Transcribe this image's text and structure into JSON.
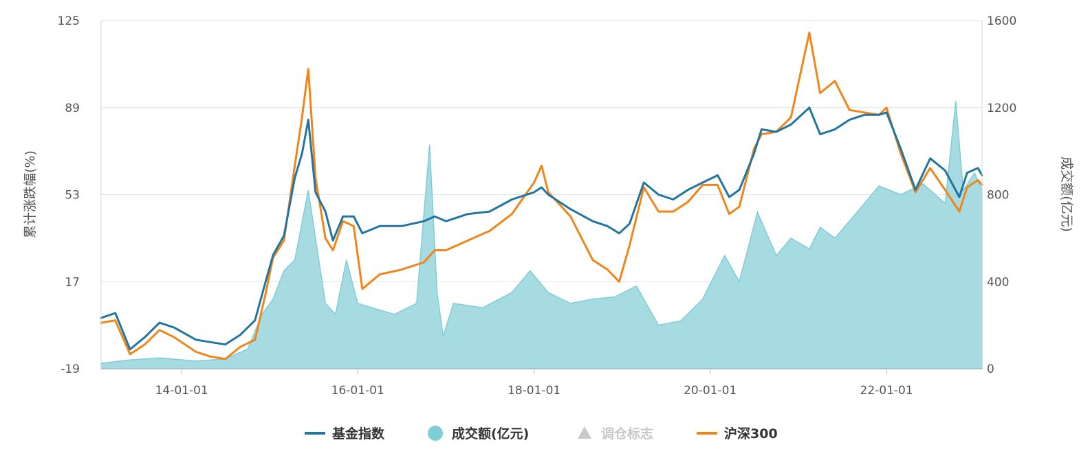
{
  "chart_data": {
    "type": "line",
    "y_left": {
      "label": "累计涨跌幅(%)",
      "ticks": [
        125,
        89,
        53,
        17,
        -19
      ],
      "ylim": [
        -19,
        125
      ]
    },
    "y_right": {
      "label": "成交额(亿元)",
      "ticks": [
        1600,
        1200,
        800,
        400,
        0
      ],
      "ylim": [
        0,
        1600
      ]
    },
    "x": {
      "ticks": [
        "14-01-01",
        "16-01-01",
        "18-01-01",
        "20-01-01",
        "22-01-01"
      ],
      "tick_dates": [
        "2014-01-01",
        "2016-01-01",
        "2018-01-01",
        "2020-01-01",
        "2022-01-01"
      ],
      "xlim": [
        "2013-02-01",
        "2023-02-01"
      ]
    },
    "grid": true,
    "legend_position": "bottom",
    "legend": [
      {
        "label": "基金指数",
        "marker": "line",
        "color": "#21759f",
        "active": true
      },
      {
        "label": "成交额(亿元)",
        "marker": "circle",
        "color": "#7fcdd6",
        "active": true
      },
      {
        "label": "调仓标志",
        "marker": "triangle",
        "color": "#c8c8c8",
        "active": false
      },
      {
        "label": "沪深300",
        "marker": "line",
        "color": "#f08519",
        "active": true
      }
    ],
    "series": [
      {
        "name": "基金指数",
        "axis": "left",
        "color": "#21759f",
        "points": [
          [
            "2013-02-01",
            2
          ],
          [
            "2013-04-01",
            4
          ],
          [
            "2013-06-01",
            -11
          ],
          [
            "2013-08-01",
            -6
          ],
          [
            "2013-10-01",
            0
          ],
          [
            "2013-12-01",
            -2
          ],
          [
            "2014-03-01",
            -7
          ],
          [
            "2014-05-01",
            -8
          ],
          [
            "2014-07-01",
            -9
          ],
          [
            "2014-09-01",
            -5
          ],
          [
            "2014-11-01",
            1
          ],
          [
            "2014-12-15",
            17
          ],
          [
            "2015-01-15",
            28
          ],
          [
            "2015-03-01",
            36
          ],
          [
            "2015-04-15",
            60
          ],
          [
            "2015-05-15",
            70
          ],
          [
            "2015-06-10",
            84
          ],
          [
            "2015-07-10",
            54
          ],
          [
            "2015-08-20",
            46
          ],
          [
            "2015-09-20",
            34
          ],
          [
            "2015-11-01",
            44
          ],
          [
            "2015-12-15",
            44
          ],
          [
            "2016-01-20",
            37
          ],
          [
            "2016-04-01",
            40
          ],
          [
            "2016-07-01",
            40
          ],
          [
            "2016-10-01",
            42
          ],
          [
            "2016-11-15",
            44
          ],
          [
            "2017-01-01",
            42
          ],
          [
            "2017-04-01",
            45
          ],
          [
            "2017-07-01",
            46
          ],
          [
            "2017-10-01",
            51
          ],
          [
            "2018-01-01",
            54
          ],
          [
            "2018-02-01",
            56
          ],
          [
            "2018-03-01",
            53
          ],
          [
            "2018-06-01",
            47
          ],
          [
            "2018-09-01",
            42
          ],
          [
            "2018-11-01",
            40
          ],
          [
            "2018-12-20",
            37
          ],
          [
            "2019-02-01",
            41
          ],
          [
            "2019-04-01",
            58
          ],
          [
            "2019-06-01",
            53
          ],
          [
            "2019-08-01",
            51
          ],
          [
            "2019-10-01",
            55
          ],
          [
            "2019-12-01",
            58
          ],
          [
            "2020-02-01",
            61
          ],
          [
            "2020-03-20",
            52
          ],
          [
            "2020-05-01",
            55
          ],
          [
            "2020-07-01",
            70
          ],
          [
            "2020-08-01",
            80
          ],
          [
            "2020-10-01",
            79
          ],
          [
            "2020-12-01",
            82
          ],
          [
            "2021-02-15",
            89
          ],
          [
            "2021-04-01",
            78
          ],
          [
            "2021-06-01",
            80
          ],
          [
            "2021-08-01",
            84
          ],
          [
            "2021-10-01",
            86
          ],
          [
            "2021-12-01",
            86
          ],
          [
            "2022-01-01",
            87
          ],
          [
            "2022-03-01",
            72
          ],
          [
            "2022-05-01",
            55
          ],
          [
            "2022-07-01",
            68
          ],
          [
            "2022-09-01",
            63
          ],
          [
            "2022-10-30",
            52
          ],
          [
            "2022-12-01",
            62
          ],
          [
            "2023-01-15",
            64
          ],
          [
            "2023-02-01",
            61
          ]
        ]
      },
      {
        "name": "沪深300",
        "axis": "left",
        "color": "#f08519",
        "points": [
          [
            "2013-02-01",
            0
          ],
          [
            "2013-04-01",
            1
          ],
          [
            "2013-06-01",
            -13
          ],
          [
            "2013-08-01",
            -9
          ],
          [
            "2013-10-01",
            -3
          ],
          [
            "2013-12-01",
            -6
          ],
          [
            "2014-03-01",
            -12
          ],
          [
            "2014-05-01",
            -14
          ],
          [
            "2014-07-01",
            -15
          ],
          [
            "2014-09-01",
            -10
          ],
          [
            "2014-11-01",
            -7
          ],
          [
            "2014-12-15",
            12
          ],
          [
            "2015-01-15",
            27
          ],
          [
            "2015-03-01",
            34
          ],
          [
            "2015-04-15",
            65
          ],
          [
            "2015-05-15",
            85
          ],
          [
            "2015-06-10",
            105
          ],
          [
            "2015-07-10",
            60
          ],
          [
            "2015-08-20",
            35
          ],
          [
            "2015-09-20",
            30
          ],
          [
            "2015-11-01",
            42
          ],
          [
            "2015-12-15",
            40
          ],
          [
            "2016-01-20",
            14
          ],
          [
            "2016-04-01",
            20
          ],
          [
            "2016-07-01",
            22
          ],
          [
            "2016-10-01",
            25
          ],
          [
            "2016-11-15",
            30
          ],
          [
            "2017-01-01",
            30
          ],
          [
            "2017-04-01",
            34
          ],
          [
            "2017-07-01",
            38
          ],
          [
            "2017-10-01",
            45
          ],
          [
            "2018-01-01",
            58
          ],
          [
            "2018-02-01",
            65
          ],
          [
            "2018-03-01",
            54
          ],
          [
            "2018-06-01",
            44
          ],
          [
            "2018-09-01",
            26
          ],
          [
            "2018-11-01",
            22
          ],
          [
            "2018-12-20",
            17
          ],
          [
            "2019-02-01",
            32
          ],
          [
            "2019-04-01",
            56
          ],
          [
            "2019-06-01",
            46
          ],
          [
            "2019-08-01",
            46
          ],
          [
            "2019-10-01",
            50
          ],
          [
            "2019-12-01",
            57
          ],
          [
            "2020-02-01",
            57
          ],
          [
            "2020-03-20",
            45
          ],
          [
            "2020-05-01",
            48
          ],
          [
            "2020-07-01",
            72
          ],
          [
            "2020-08-01",
            78
          ],
          [
            "2020-10-01",
            79
          ],
          [
            "2020-12-01",
            85
          ],
          [
            "2021-02-15",
            120
          ],
          [
            "2021-04-01",
            95
          ],
          [
            "2021-06-01",
            100
          ],
          [
            "2021-08-01",
            88
          ],
          [
            "2021-10-01",
            87
          ],
          [
            "2021-12-01",
            86
          ],
          [
            "2022-01-01",
            89
          ],
          [
            "2022-03-01",
            70
          ],
          [
            "2022-05-01",
            54
          ],
          [
            "2022-07-01",
            64
          ],
          [
            "2022-09-01",
            55
          ],
          [
            "2022-10-30",
            46
          ],
          [
            "2022-12-01",
            56
          ],
          [
            "2023-01-15",
            59
          ],
          [
            "2023-02-01",
            57
          ]
        ]
      },
      {
        "name": "成交额(亿元)",
        "axis": "right",
        "type": "area",
        "color": "#7fcdd6",
        "points": [
          [
            "2013-02-01",
            25
          ],
          [
            "2013-06-01",
            40
          ],
          [
            "2013-10-01",
            50
          ],
          [
            "2014-03-01",
            35
          ],
          [
            "2014-07-01",
            45
          ],
          [
            "2014-10-01",
            90
          ],
          [
            "2014-12-01",
            250
          ],
          [
            "2015-01-15",
            320
          ],
          [
            "2015-03-01",
            450
          ],
          [
            "2015-04-15",
            500
          ],
          [
            "2015-06-10",
            820
          ],
          [
            "2015-07-10",
            600
          ],
          [
            "2015-08-20",
            300
          ],
          [
            "2015-10-01",
            250
          ],
          [
            "2015-11-15",
            500
          ],
          [
            "2016-01-01",
            300
          ],
          [
            "2016-03-01",
            280
          ],
          [
            "2016-06-01",
            250
          ],
          [
            "2016-09-01",
            300
          ],
          [
            "2016-10-25",
            1030
          ],
          [
            "2016-11-25",
            350
          ],
          [
            "2016-12-20",
            150
          ],
          [
            "2017-02-01",
            300
          ],
          [
            "2017-06-01",
            280
          ],
          [
            "2017-10-01",
            350
          ],
          [
            "2017-12-15",
            450
          ],
          [
            "2018-03-01",
            350
          ],
          [
            "2018-06-01",
            300
          ],
          [
            "2018-09-01",
            320
          ],
          [
            "2018-12-01",
            330
          ],
          [
            "2019-03-01",
            380
          ],
          [
            "2019-06-01",
            200
          ],
          [
            "2019-09-01",
            220
          ],
          [
            "2019-12-01",
            320
          ],
          [
            "2020-03-01",
            520
          ],
          [
            "2020-05-01",
            400
          ],
          [
            "2020-07-15",
            720
          ],
          [
            "2020-10-01",
            520
          ],
          [
            "2020-12-01",
            600
          ],
          [
            "2021-02-15",
            550
          ],
          [
            "2021-04-01",
            650
          ],
          [
            "2021-06-01",
            600
          ],
          [
            "2021-09-01",
            720
          ],
          [
            "2021-12-01",
            840
          ],
          [
            "2022-03-01",
            800
          ],
          [
            "2022-06-01",
            850
          ],
          [
            "2022-09-01",
            760
          ],
          [
            "2022-10-15",
            1230
          ],
          [
            "2022-11-15",
            820
          ],
          [
            "2023-01-01",
            900
          ],
          [
            "2023-02-01",
            820
          ]
        ]
      }
    ]
  }
}
